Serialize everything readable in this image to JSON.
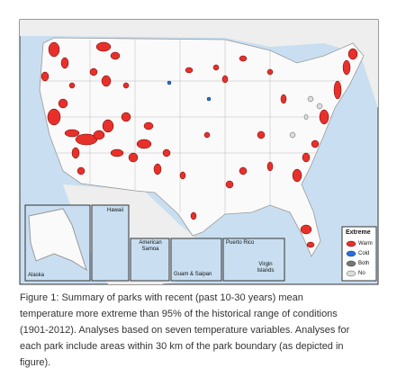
{
  "legend": {
    "title": "Extreme",
    "items": [
      "Warm",
      "Cold",
      "Both",
      "No"
    ]
  },
  "insets": {
    "alaska": "Alaska",
    "hawaii": "Hawaii",
    "samoa": "American Samoa",
    "guam": "Guam & Saipan",
    "puerto_rico": "Puerto Rico",
    "virgin": "Virgin Islands"
  },
  "caption": {
    "lines": [
      "Figure 1: Summary of parks with recent (past 10-30 years) mean",
      "temperature more extreme than 95% of the historical range of conditions",
      "(1901-2012). Analyses based on seven temperature variables. Analyses for",
      "each park include areas within 30 km of the park boundary (as depicted in",
      "figure)."
    ]
  }
}
